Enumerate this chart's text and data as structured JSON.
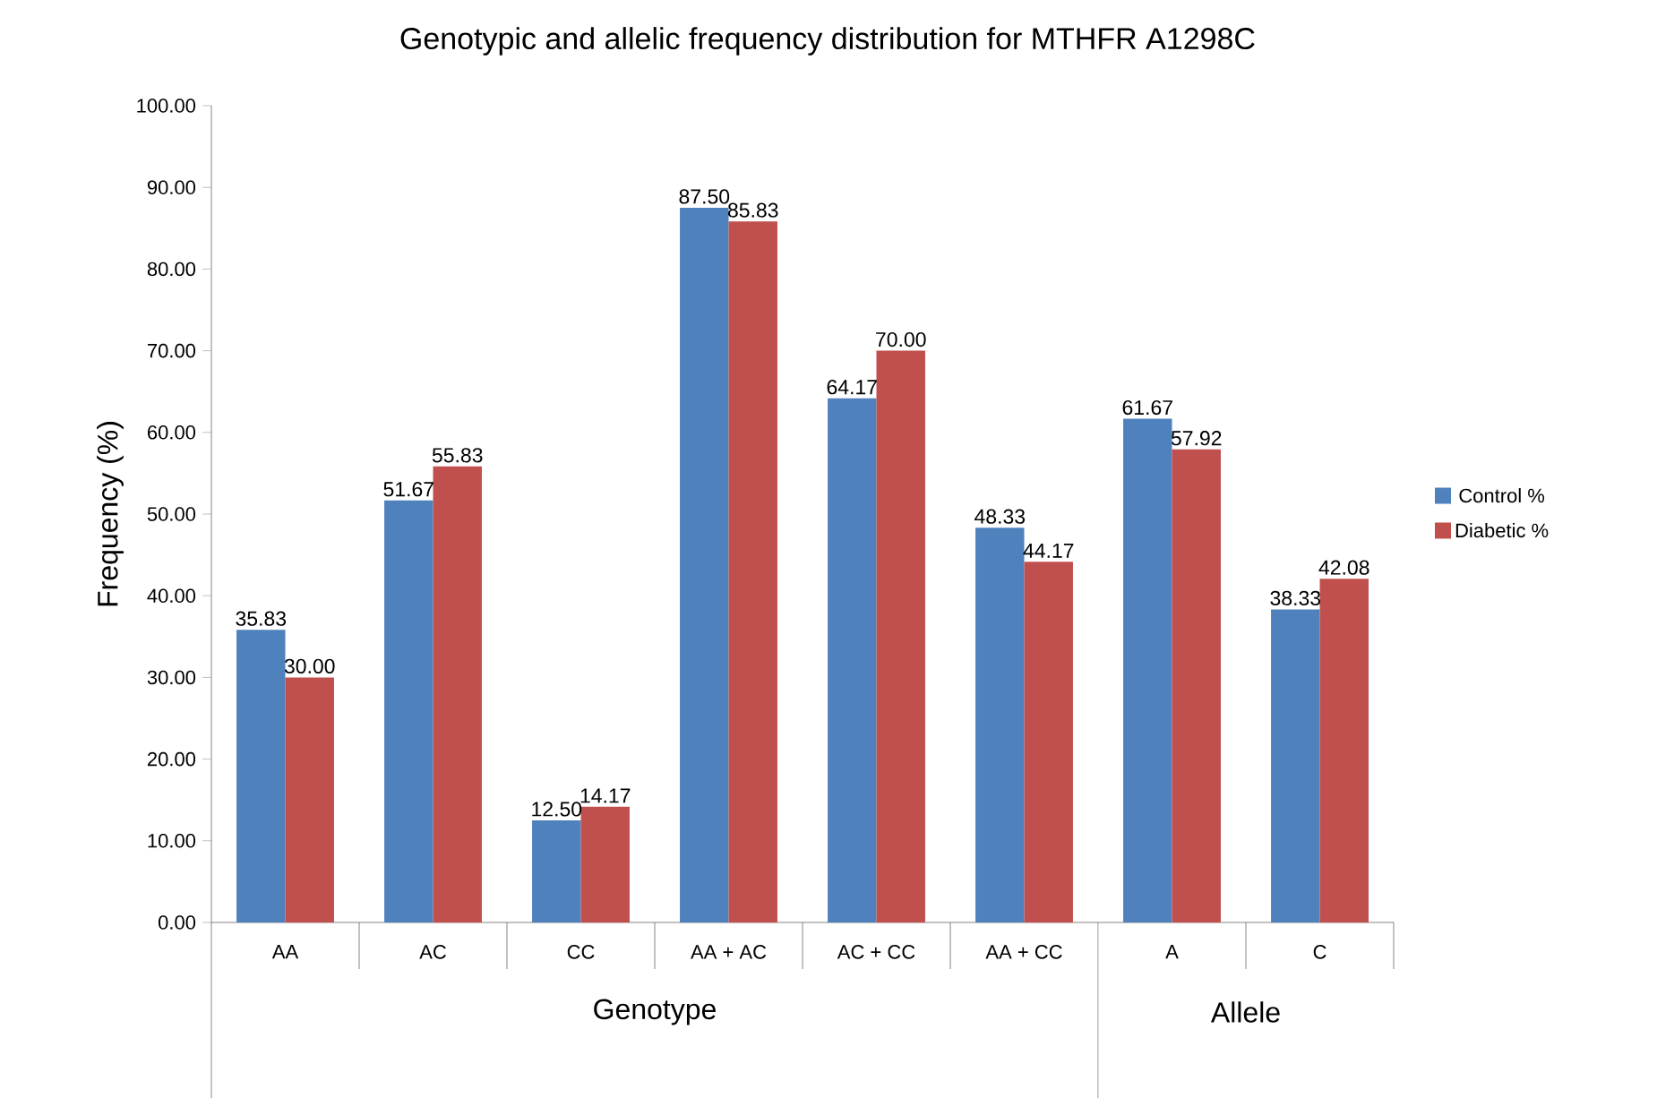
{
  "chart_data": {
    "type": "bar",
    "title": "Genotypic and allelic frequency distribution for  MTHFR A1298C",
    "ylabel": "Frequency (%)",
    "categories": [
      "AA",
      "AC",
      "CC",
      "AA + AC",
      "AC + CC",
      "AA + CC",
      "A",
      "C"
    ],
    "series": [
      {
        "name": "Control %",
        "color": "#4f81bd",
        "values": [
          35.83,
          51.67,
          12.5,
          87.5,
          64.17,
          48.33,
          61.67,
          38.33
        ],
        "value_labels": [
          "35.83",
          "51.67",
          "12.50",
          "87.50",
          "64.17",
          "48.33",
          "61.67",
          "38.33"
        ]
      },
      {
        "name": "Diabetic %",
        "color": "#c0504d",
        "values": [
          30.0,
          55.83,
          14.17,
          85.83,
          70.0,
          44.17,
          57.92,
          42.08
        ],
        "value_labels": [
          "30.00",
          "55.83",
          "14.17",
          "85.83",
          "70.00",
          "44.17",
          "57.92",
          "42.08"
        ]
      }
    ],
    "ylim": [
      0,
      100
    ],
    "yticks": [
      {
        "value": 0,
        "label": "0.00"
      },
      {
        "value": 10,
        "label": "10.00"
      },
      {
        "value": 20,
        "label": "20.00"
      },
      {
        "value": 30,
        "label": "30.00"
      },
      {
        "value": 40,
        "label": "40.00"
      },
      {
        "value": 50,
        "label": "50.00"
      },
      {
        "value": 60,
        "label": "60.00"
      },
      {
        "value": 70,
        "label": "70.00"
      },
      {
        "value": 80,
        "label": "80.00"
      },
      {
        "value": 90,
        "label": "90.00"
      },
      {
        "value": 100,
        "label": "100.00"
      }
    ],
    "legend": "right",
    "annotations": [
      "Genotype",
      "Allele"
    ]
  }
}
